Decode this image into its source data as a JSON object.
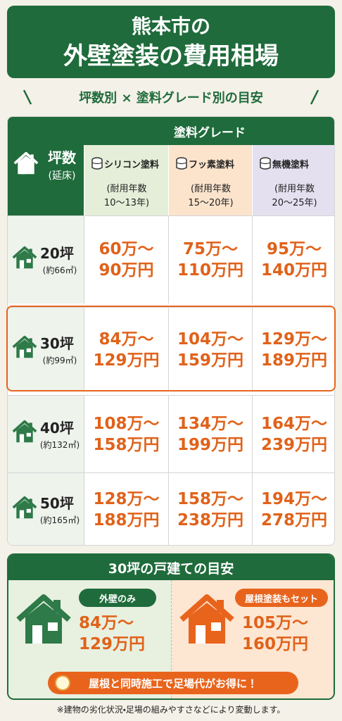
{
  "header": {
    "title_line1": "熊本市の",
    "title_line2": "外壁塗装の費用相場",
    "subtitle": "坪数別 × 塗料グレード別の目安"
  },
  "table": {
    "corner": {
      "label": "坪数",
      "sub": "(延床)"
    },
    "group_header": "塗料グレード",
    "columns": [
      {
        "name": "シリコン塗料",
        "life_label": "(耐用年数",
        "life": "10～13年)"
      },
      {
        "name": "フッ素塗料",
        "life_label": "(耐用年数",
        "life": "15～20年)"
      },
      {
        "name": "無機塗料",
        "life_label": "(耐用年数",
        "life": "20～25年)"
      }
    ],
    "rows": [
      {
        "size": "20坪",
        "area": "(約66㎡)",
        "cells": [
          [
            "60万～",
            "90万円"
          ],
          [
            "75万～",
            "110万円"
          ],
          [
            "95万～",
            "140万円"
          ]
        ]
      },
      {
        "size": "30坪",
        "area": "(約99㎡)",
        "cells": [
          [
            "84万～",
            "129万円"
          ],
          [
            "104万～",
            "159万円"
          ],
          [
            "129万～",
            "189万円"
          ]
        ]
      },
      {
        "size": "40坪",
        "area": "(約132㎡)",
        "cells": [
          [
            "108万～",
            "158万円"
          ],
          [
            "134万～",
            "199万円"
          ],
          [
            "164万～",
            "239万円"
          ]
        ]
      },
      {
        "size": "50坪",
        "area": "(約165㎡)",
        "cells": [
          [
            "128万～",
            "188万円"
          ],
          [
            "158万～",
            "238万円"
          ],
          [
            "194万～",
            "278万円"
          ]
        ]
      }
    ]
  },
  "example": {
    "title": "30坪の戸建ての目安",
    "options": [
      {
        "label": "外壁のみ",
        "low": "84万～",
        "high": "129万円"
      },
      {
        "label": "屋根塗装もセット",
        "low": "105万～",
        "high": "160万円"
      }
    ],
    "banner": "屋根と同時施工で足場代がお得に！"
  },
  "footnote": "※建物の劣化状況・足場の組みやすさなどにより変動します。"
}
